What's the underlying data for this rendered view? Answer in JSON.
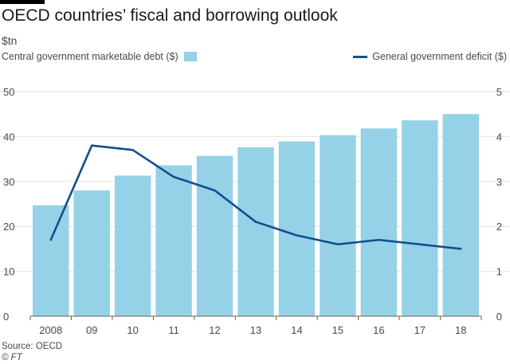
{
  "header": {
    "title": "OECD countries’ fiscal and borrowing outlook",
    "unit": "$tn"
  },
  "legend": {
    "bars_label": "Central government marketable debt ($)",
    "line_label": "General government deficit ($)"
  },
  "footer": {
    "source": "Source: OECD",
    "credit": "© FT"
  },
  "colors": {
    "bars": "#96d2e7",
    "line": "#0f4f8f",
    "grid": "#e6e2de",
    "axis": "#66605c"
  },
  "chart_data": {
    "type": "bar",
    "categories": [
      "2008",
      "09",
      "10",
      "11",
      "12",
      "13",
      "14",
      "15",
      "16",
      "17",
      "18"
    ],
    "series": [
      {
        "name": "Central government marketable debt ($)",
        "type": "bar",
        "axis": "left",
        "values": [
          24.7,
          28.0,
          31.3,
          33.6,
          35.7,
          37.6,
          38.9,
          40.3,
          41.8,
          43.6,
          45.0
        ]
      },
      {
        "name": "General government deficit ($)",
        "type": "line",
        "axis": "right",
        "values": [
          1.7,
          3.8,
          3.7,
          3.1,
          2.8,
          2.1,
          1.8,
          1.6,
          1.7,
          1.6,
          1.5
        ]
      }
    ],
    "ylabel": "$tn",
    "ylim_left": [
      0,
      50
    ],
    "ylim_right": [
      0,
      5
    ],
    "yticks_left": [
      "0",
      "10",
      "20",
      "30",
      "40",
      "50"
    ],
    "yticks_right": [
      "0",
      "1",
      "2",
      "3",
      "4",
      "5"
    ],
    "grid": true,
    "legend_position": "top"
  }
}
